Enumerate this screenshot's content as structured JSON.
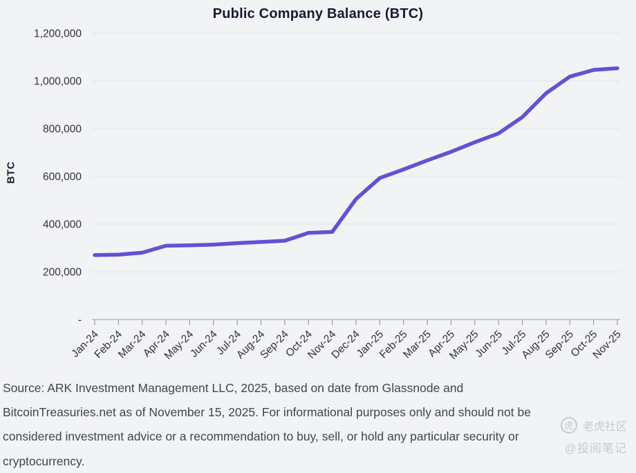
{
  "page": {
    "background": "#f2f3f5"
  },
  "chart": {
    "title_color": "#191832",
    "line_color": "#6351d5",
    "grid_color": "#e3e3e8",
    "axis_color": "#b6b7bf",
    "tick_color": "#85858f",
    "label_color": "#30303c"
  },
  "chart_data": {
    "type": "line",
    "title": "Public Company Balance (BTC)",
    "xlabel": "",
    "ylabel": "BTC",
    "categories": [
      "Jan-24",
      "Feb-24",
      "Mar-24",
      "Apr-24",
      "May-24",
      "Jun-24",
      "Jul-24",
      "Aug-24",
      "Sep-24",
      "Oct-24",
      "Nov-24",
      "Dec-24",
      "Jan-25",
      "Feb-25",
      "Mar-25",
      "Apr-25",
      "May-25",
      "Jun-25",
      "Jul-25",
      "Aug-25",
      "Sep-25",
      "Oct-25",
      "Nov-25"
    ],
    "values": [
      270000,
      272000,
      280000,
      309000,
      311000,
      314000,
      320000,
      325000,
      330000,
      363000,
      367000,
      505000,
      593000,
      629000,
      667000,
      703000,
      743000,
      780000,
      848000,
      948000,
      1018000,
      1046000,
      1053000
    ],
    "ylim": [
      0,
      1200000
    ],
    "ytick_step": 200000,
    "ytick_labels": [
      "-",
      "200,000",
      "400,000",
      "600,000",
      "800,000",
      "1,000,000",
      "1,200,000"
    ],
    "grid": "horizontal",
    "legend_position": "none"
  },
  "footer": {
    "lines": [
      "Source: ARK Investment Management LLC, 2025, based on date from Glassnode and",
      "BitcoinTreasuries.net as of November 15, 2025. For informational purposes only and should not be",
      "considered investment advice or a recommendation to buy, sell, or hold any particular security or",
      "cryptocurrency."
    ]
  },
  "watermark": {
    "logo_glyph": "虎",
    "community": "老虎社区",
    "handle": "@投阅笔记"
  }
}
